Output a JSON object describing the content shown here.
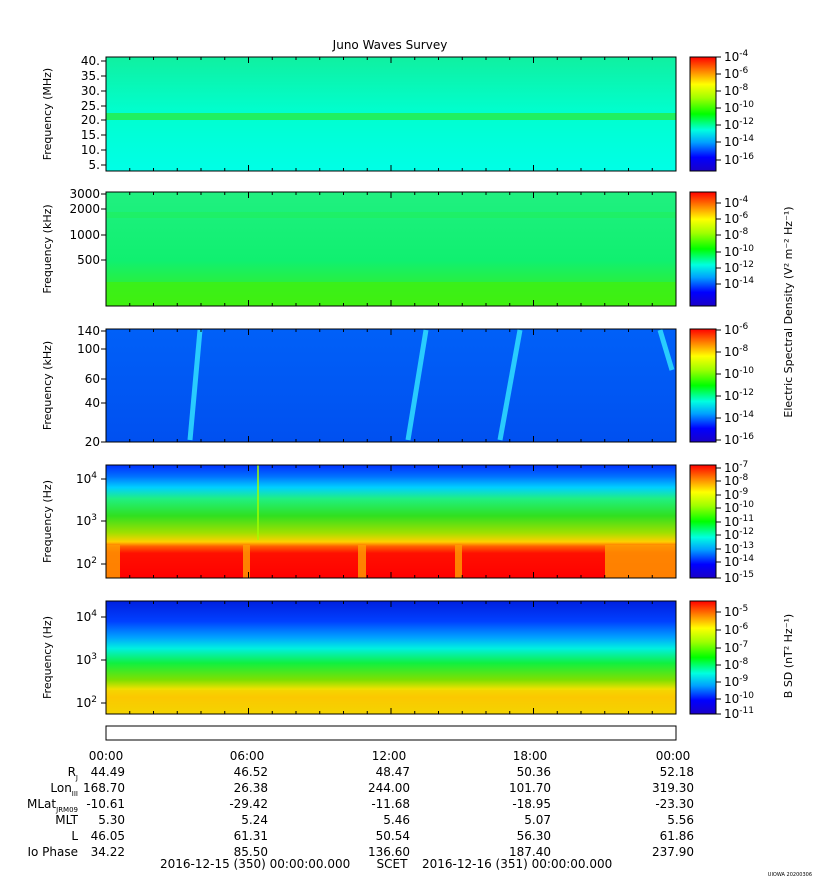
{
  "title": "Juno Waves Survey",
  "credit": "UIOWA 20200306",
  "panels": [
    {
      "ylabel": "Frequency (MHz)",
      "yticks": [
        "40.",
        "35.",
        "30.",
        "25.",
        "20.",
        "15.",
        "10.",
        "5."
      ],
      "cbar_ticks": [
        {
          "mant": "10",
          "exp": "-4"
        },
        {
          "mant": "10",
          "exp": "-6"
        },
        {
          "mant": "10",
          "exp": "-8"
        },
        {
          "mant": "10",
          "exp": "-10"
        },
        {
          "mant": "10",
          "exp": "-12"
        },
        {
          "mant": "10",
          "exp": "-14"
        },
        {
          "mant": "10",
          "exp": "-16"
        }
      ]
    },
    {
      "ylabel": "Frequency (kHz)",
      "yticks": [
        "3000",
        "2000",
        "1000",
        "500"
      ],
      "cbar_ticks": [
        {
          "mant": "10",
          "exp": "-4"
        },
        {
          "mant": "10",
          "exp": "-6"
        },
        {
          "mant": "10",
          "exp": "-8"
        },
        {
          "mant": "10",
          "exp": "-10"
        },
        {
          "mant": "10",
          "exp": "-12"
        },
        {
          "mant": "10",
          "exp": "-14"
        }
      ]
    },
    {
      "ylabel": "Frequency (kHz)",
      "yticks": [
        "140",
        "100",
        "60",
        "40",
        "20"
      ],
      "cbar_ticks": [
        {
          "mant": "10",
          "exp": "-6"
        },
        {
          "mant": "10",
          "exp": "-8"
        },
        {
          "mant": "10",
          "exp": "-10"
        },
        {
          "mant": "10",
          "exp": "-12"
        },
        {
          "mant": "10",
          "exp": "-14"
        },
        {
          "mant": "10",
          "exp": "-16"
        }
      ]
    },
    {
      "ylabel": "Frequency (Hz)",
      "yticks": [
        {
          "mant": "10",
          "exp": "4"
        },
        {
          "mant": "10",
          "exp": "3"
        },
        {
          "mant": "10",
          "exp": "2"
        }
      ],
      "cbar_ticks": [
        {
          "mant": "10",
          "exp": "-7"
        },
        {
          "mant": "10",
          "exp": "-8"
        },
        {
          "mant": "10",
          "exp": "-9"
        },
        {
          "mant": "10",
          "exp": "-10"
        },
        {
          "mant": "10",
          "exp": "-11"
        },
        {
          "mant": "10",
          "exp": "-12"
        },
        {
          "mant": "10",
          "exp": "-13"
        },
        {
          "mant": "10",
          "exp": "-14"
        },
        {
          "mant": "10",
          "exp": "-15"
        }
      ]
    },
    {
      "ylabel": "Frequency (Hz)",
      "yticks": [
        {
          "mant": "10",
          "exp": "4"
        },
        {
          "mant": "10",
          "exp": "3"
        },
        {
          "mant": "10",
          "exp": "2"
        }
      ],
      "cbar_ticks": [
        {
          "mant": "10",
          "exp": "-5"
        },
        {
          "mant": "10",
          "exp": "-6"
        },
        {
          "mant": "10",
          "exp": "-7"
        },
        {
          "mant": "10",
          "exp": "-8"
        },
        {
          "mant": "10",
          "exp": "-9"
        },
        {
          "mant": "10",
          "exp": "-10"
        },
        {
          "mant": "10",
          "exp": "-11"
        }
      ]
    }
  ],
  "cbar_label_e": "Electric Spectral Density (V² m⁻² Hz⁻¹)",
  "cbar_label_b": "B SD (nT² Hz⁻¹)",
  "time_labels": [
    "00:00",
    "06:00",
    "12:00",
    "18:00",
    "00:00"
  ],
  "ephemeris": [
    {
      "label": "R",
      "sub": "J",
      "values": [
        "44.49",
        "46.52",
        "48.47",
        "50.36",
        "52.18"
      ]
    },
    {
      "label": "Lon",
      "sub": "III",
      "values": [
        "168.70",
        "26.38",
        "244.00",
        "101.70",
        "319.30"
      ]
    },
    {
      "label": "MLat",
      "sub": "JRM09",
      "values": [
        "-10.61",
        "-29.42",
        "-11.68",
        "-18.95",
        "-23.30"
      ]
    },
    {
      "label": "MLT",
      "sub": "",
      "values": [
        "5.30",
        "5.24",
        "5.46",
        "5.07",
        "5.56"
      ]
    },
    {
      "label": "L",
      "sub": "",
      "values": [
        "46.05",
        "61.31",
        "50.54",
        "56.30",
        "61.86"
      ]
    },
    {
      "label": "Io Phase",
      "sub": "",
      "values": [
        "34.22",
        "85.50",
        "136.60",
        "187.40",
        "237.90"
      ]
    }
  ],
  "footer": {
    "start": "2016-12-15 (350) 00:00:00.000",
    "scet": "SCET",
    "end": "2016-12-16 (351) 00:00:00.000"
  },
  "chart_data": {
    "type": "heatmap",
    "title": "Juno Waves Survey",
    "x": [
      "00:00",
      "06:00",
      "12:00",
      "18:00",
      "00:00"
    ],
    "panels": [
      {
        "ylabel": "Frequency (MHz)",
        "ylim": [
          3,
          41
        ],
        "colorbar": [
          "10^-16",
          "10^-4"
        ]
      },
      {
        "ylabel": "Frequency (kHz)",
        "ylim": [
          150,
          3000
        ],
        "yscale": "log",
        "colorbar": [
          "10^-14",
          "10^-4"
        ]
      },
      {
        "ylabel": "Frequency (kHz)",
        "ylim": [
          20,
          140
        ],
        "yscale": "log",
        "colorbar": [
          "10^-16",
          "10^-6"
        ]
      },
      {
        "ylabel": "Frequency (Hz)",
        "ylim": [
          50,
          20000
        ],
        "yscale": "log",
        "colorbar": [
          "10^-15",
          "10^-7"
        ]
      },
      {
        "ylabel": "Frequency (Hz)",
        "ylim": [
          50,
          20000
        ],
        "yscale": "log",
        "colorbar": [
          "10^-11",
          "10^-5"
        ]
      }
    ]
  }
}
